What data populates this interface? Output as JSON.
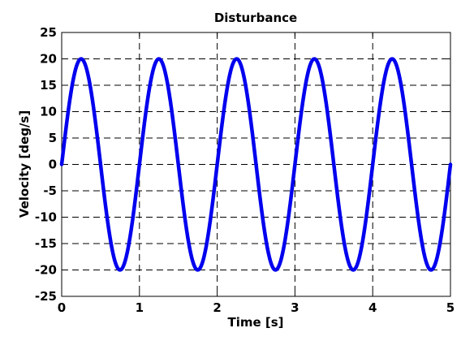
{
  "chart_data": {
    "type": "line",
    "title": "Disturbance",
    "xlabel": "Time  [s]",
    "ylabel": "Velocity [deg/s]",
    "xlim": [
      0,
      5
    ],
    "ylim": [
      -25,
      25
    ],
    "xticks": [
      0,
      1,
      2,
      3,
      4,
      5
    ],
    "yticks": [
      -25,
      -20,
      -15,
      -10,
      -5,
      0,
      5,
      10,
      15,
      20,
      25
    ],
    "xtick_labels": [
      "0",
      "1",
      "2",
      "3",
      "4",
      "5"
    ],
    "ytick_labels": [
      "-25",
      "-20",
      "-15",
      "-10",
      "-5",
      "0",
      "5",
      "10",
      "15",
      "20",
      "25"
    ],
    "grid": true,
    "line_color": "#0000ee",
    "series": [
      {
        "amplitude": 20,
        "frequency_hz": 1,
        "points": [
          {
            "x": 0.0,
            "y": 0
          },
          {
            "x": 0.125,
            "y": 14.14
          },
          {
            "x": 0.25,
            "y": 20
          },
          {
            "x": 0.375,
            "y": 14.14
          },
          {
            "x": 0.5,
            "y": 0
          },
          {
            "x": 0.625,
            "y": -14.14
          },
          {
            "x": 0.75,
            "y": -20
          },
          {
            "x": 0.875,
            "y": -14.14
          },
          {
            "x": 1.0,
            "y": 0
          },
          {
            "x": 1.125,
            "y": 14.14
          },
          {
            "x": 1.25,
            "y": 20
          },
          {
            "x": 1.375,
            "y": 14.14
          },
          {
            "x": 1.5,
            "y": 0
          },
          {
            "x": 1.625,
            "y": -14.14
          },
          {
            "x": 1.75,
            "y": -20
          },
          {
            "x": 1.875,
            "y": -14.14
          },
          {
            "x": 2.0,
            "y": 0
          },
          {
            "x": 2.125,
            "y": 14.14
          },
          {
            "x": 2.25,
            "y": 20
          },
          {
            "x": 2.375,
            "y": 14.14
          },
          {
            "x": 2.5,
            "y": 0
          },
          {
            "x": 2.625,
            "y": -14.14
          },
          {
            "x": 2.75,
            "y": -20
          },
          {
            "x": 2.875,
            "y": -14.14
          },
          {
            "x": 3.0,
            "y": 0
          },
          {
            "x": 3.125,
            "y": 14.14
          },
          {
            "x": 3.25,
            "y": 20
          },
          {
            "x": 3.375,
            "y": 14.14
          },
          {
            "x": 3.5,
            "y": 0
          },
          {
            "x": 3.625,
            "y": -14.14
          },
          {
            "x": 3.75,
            "y": -20
          },
          {
            "x": 3.875,
            "y": -14.14
          },
          {
            "x": 4.0,
            "y": 0
          },
          {
            "x": 4.125,
            "y": 14.14
          },
          {
            "x": 4.25,
            "y": 20
          },
          {
            "x": 4.375,
            "y": 14.14
          },
          {
            "x": 4.5,
            "y": 0
          },
          {
            "x": 4.625,
            "y": -14.14
          },
          {
            "x": 4.75,
            "y": -20
          },
          {
            "x": 4.875,
            "y": -14.14
          },
          {
            "x": 5.0,
            "y": 0
          }
        ]
      }
    ]
  }
}
